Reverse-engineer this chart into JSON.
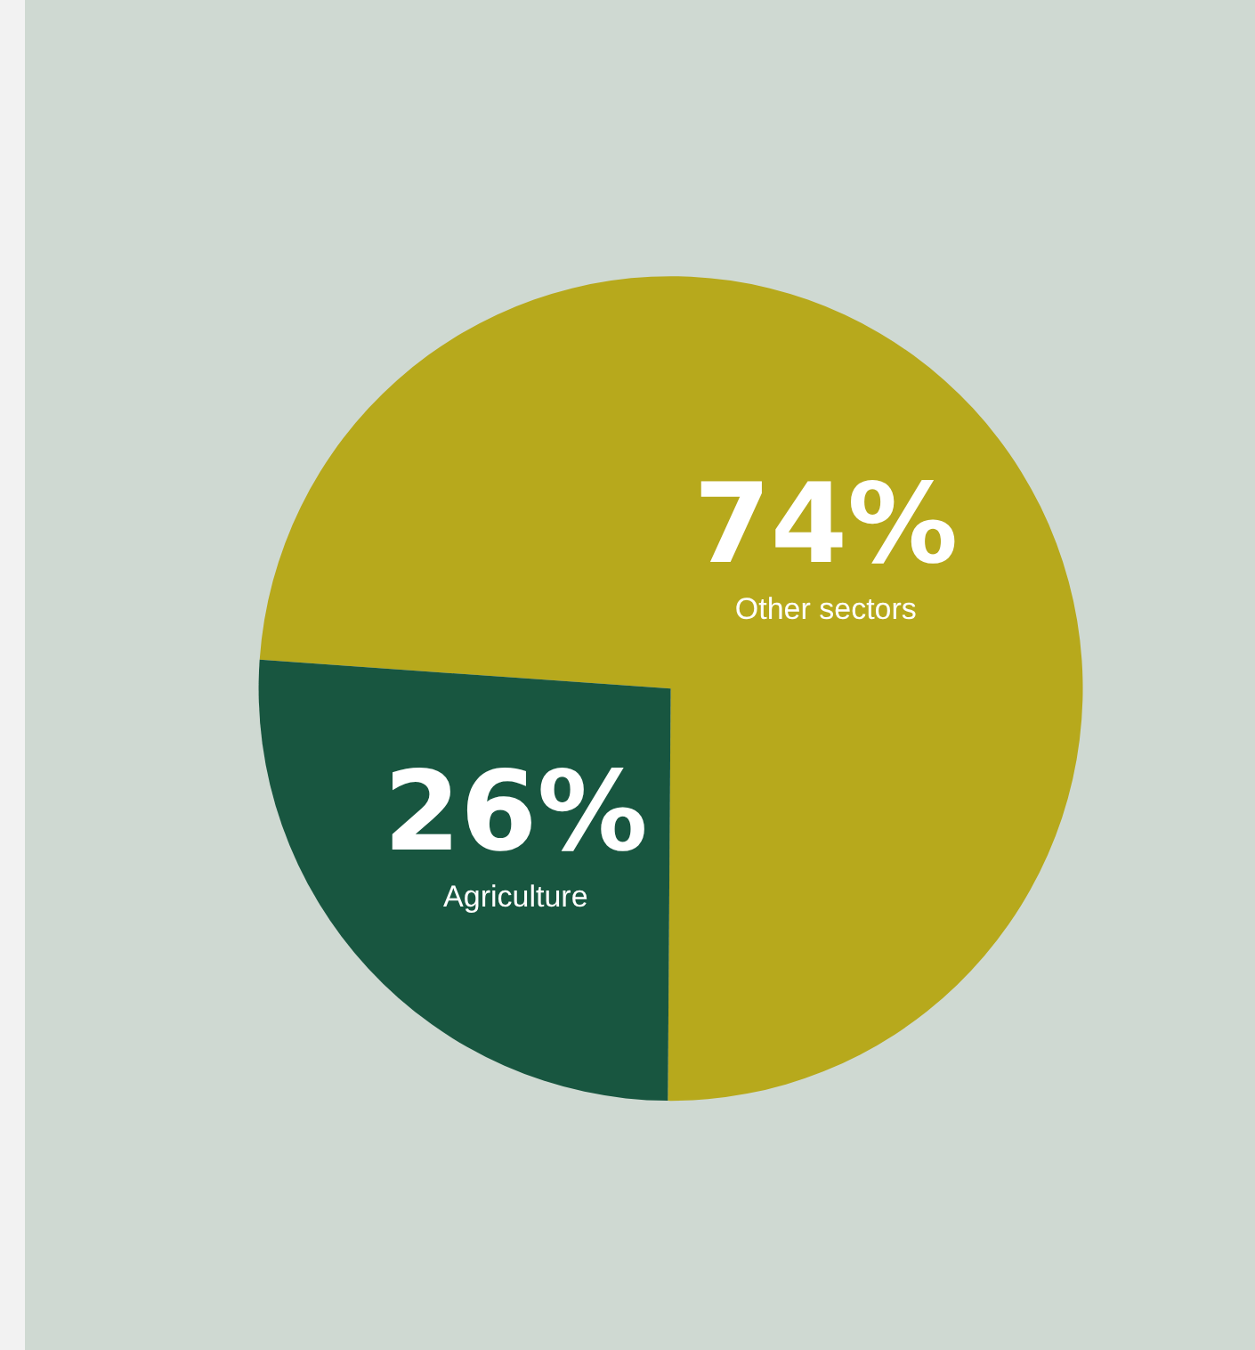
{
  "chart_data": {
    "type": "pie",
    "categories": [
      "Other sectors",
      "Agriculture"
    ],
    "values": [
      74,
      26
    ],
    "colors": [
      "#b7a91c",
      "#185640"
    ],
    "value_labels": [
      "74%",
      "26%"
    ],
    "legend": false
  }
}
